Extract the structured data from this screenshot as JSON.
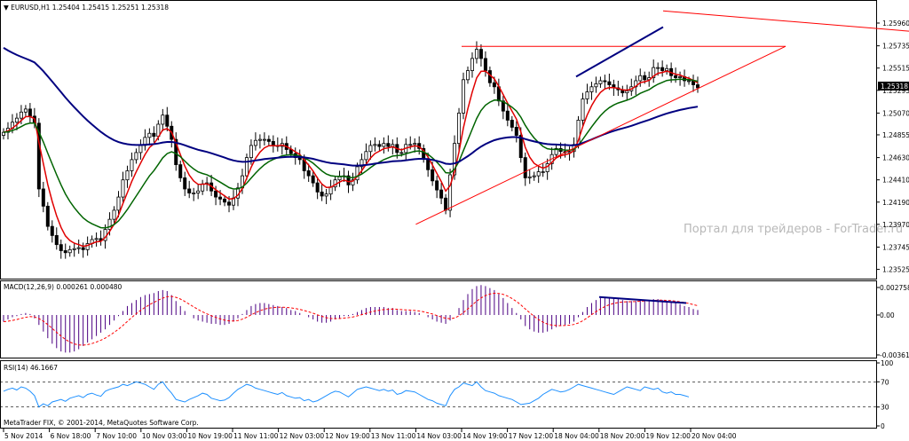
{
  "chart_data": {
    "type": "candlestick",
    "price_panel": {
      "title": "▼ EURUSD,H1  1.25404 1.25415 1.25251 1.25318",
      "price_ticks": [
        "1.25960",
        "1.25735",
        "1.25515",
        "1.25295",
        "1.25070",
        "1.24855",
        "1.24630",
        "1.24410",
        "1.24190",
        "1.23970",
        "1.23745",
        "1.23525"
      ],
      "current_price": "1.25318",
      "watermark": "Портал для трейдеров - ForTrader.ru",
      "ylim": [
        1.2346,
        1.2603
      ],
      "closes": [
        1.2488,
        1.2492,
        1.2498,
        1.2502,
        1.2508,
        1.2511,
        1.2504,
        1.2497,
        1.2432,
        1.2415,
        1.2395,
        1.2386,
        1.2377,
        1.2371,
        1.2369,
        1.2372,
        1.2373,
        1.2374,
        1.2372,
        1.2378,
        1.2382,
        1.2383,
        1.2381,
        1.2392,
        1.2402,
        1.2411,
        1.2424,
        1.2441,
        1.245,
        1.2461,
        1.2468,
        1.2475,
        1.2483,
        1.2487,
        1.2484,
        1.2496,
        1.2505,
        1.2494,
        1.2481,
        1.2456,
        1.2443,
        1.2432,
        1.2428,
        1.2428,
        1.243,
        1.2437,
        1.2438,
        1.243,
        1.2424,
        1.2422,
        1.2419,
        1.2416,
        1.2423,
        1.2433,
        1.2445,
        1.2463,
        1.2475,
        1.248,
        1.2481,
        1.2481,
        1.2479,
        1.2475,
        1.2474,
        1.2477,
        1.2471,
        1.2467,
        1.2463,
        1.2461,
        1.245,
        1.2445,
        1.2438,
        1.2429,
        1.2425,
        1.2427,
        1.2434,
        1.2441,
        1.2444,
        1.2445,
        1.2436,
        1.2441,
        1.2454,
        1.2461,
        1.2469,
        1.2475,
        1.2476,
        1.2474,
        1.2477,
        1.2474,
        1.2476,
        1.2468,
        1.2468,
        1.2476,
        1.2476,
        1.2477,
        1.2472,
        1.2462,
        1.2451,
        1.244,
        1.2431,
        1.2423,
        1.2411,
        1.2446,
        1.2477,
        1.2507,
        1.254,
        1.2549,
        1.2561,
        1.257,
        1.2561,
        1.2549,
        1.2537,
        1.2533,
        1.2519,
        1.2509,
        1.25,
        1.2493,
        1.2485,
        1.2463,
        1.2443,
        1.2444,
        1.2445,
        1.2449,
        1.2449,
        1.2457,
        1.2466,
        1.2472,
        1.2469,
        1.2468,
        1.2469,
        1.2476,
        1.25,
        1.2521,
        1.2528,
        1.2533,
        1.2536,
        1.2539,
        1.2538,
        1.2535,
        1.2532,
        1.253,
        1.2527,
        1.2529,
        1.2533,
        1.2539,
        1.2544,
        1.254,
        1.2542,
        1.2552,
        1.2552,
        1.2549,
        1.2551,
        1.2544,
        1.2542,
        1.2543,
        1.2539,
        1.2539,
        1.2535,
        1.2532
      ]
    },
    "macd_panel": {
      "title": "MACD(12,26,9) 0.000261 0.000480",
      "ticks": [
        "0.002758",
        "0.00",
        "-0.003615"
      ],
      "values": [
        -0.0006,
        -0.0004,
        -0.0002,
        -0.0001,
        0.0001,
        0.0002,
        0.0001,
        -0.0003,
        -0.0009,
        -0.0015,
        -0.0021,
        -0.0026,
        -0.003,
        -0.0033,
        -0.0034,
        -0.0034,
        -0.0033,
        -0.0031,
        -0.0028,
        -0.0025,
        -0.0022,
        -0.0019,
        -0.0016,
        -0.0013,
        -0.0009,
        -0.0005,
        -0.0001,
        0.0004,
        0.0009,
        0.0012,
        0.0015,
        0.0018,
        0.002,
        0.0021,
        0.0022,
        0.0024,
        0.0025,
        0.0024,
        0.002,
        0.0014,
        0.0009,
        0.0004,
        0.0,
        -0.0003,
        -0.0005,
        -0.0006,
        -0.0007,
        -0.0008,
        -0.0008,
        -0.0009,
        -0.0009,
        -0.0008,
        -0.0006,
        -0.0003,
        0.0001,
        0.0005,
        0.0009,
        0.0011,
        0.0012,
        0.0012,
        0.0011,
        0.001,
        0.0009,
        0.0008,
        0.0007,
        0.0005,
        0.0004,
        0.0002,
        0.0,
        -0.0002,
        -0.0004,
        -0.0006,
        -0.0007,
        -0.0007,
        -0.0006,
        -0.0004,
        -0.0003,
        -0.0001,
        -0.0001,
        0.0001,
        0.0003,
        0.0005,
        0.0007,
        0.0008,
        0.0008,
        0.0008,
        0.0008,
        0.0007,
        0.0007,
        0.0005,
        0.0004,
        0.0004,
        0.0004,
        0.0003,
        0.0002,
        0.0,
        -0.0002,
        -0.0004,
        -0.0006,
        -0.0007,
        -0.0008,
        -0.0005,
        0.0,
        0.0007,
        0.0015,
        0.0021,
        0.0026,
        0.0029,
        0.003,
        0.0029,
        0.0027,
        0.0025,
        0.0021,
        0.0017,
        0.0012,
        0.0007,
        0.0002,
        -0.0004,
        -0.001,
        -0.0013,
        -0.0015,
        -0.0016,
        -0.0016,
        -0.0015,
        -0.0013,
        -0.0011,
        -0.001,
        -0.0009,
        -0.0008,
        -0.0006,
        -0.0002,
        0.0003,
        0.0008,
        0.0012,
        0.0015,
        0.0017,
        0.0018,
        0.0018,
        0.0017,
        0.0016,
        0.0015,
        0.0014,
        0.0014,
        0.0014,
        0.0015,
        0.0015,
        0.0015,
        0.0016,
        0.0016,
        0.0015,
        0.0014,
        0.0013,
        0.0012,
        0.0011,
        0.0009,
        0.0008,
        0.0006,
        0.0005
      ]
    },
    "rsi_panel": {
      "title": "RSI(14) 46.1667",
      "ticks": [
        "100",
        "70",
        "30",
        "0"
      ],
      "ylim": [
        0,
        100
      ],
      "values": [
        55,
        58,
        60,
        57,
        62,
        60,
        55,
        48,
        30,
        35,
        32,
        38,
        40,
        42,
        39,
        44,
        46,
        48,
        45,
        50,
        52,
        49,
        47,
        55,
        58,
        60,
        62,
        66,
        64,
        67,
        70,
        68,
        66,
        62,
        58,
        66,
        70,
        60,
        52,
        42,
        40,
        38,
        42,
        45,
        48,
        52,
        50,
        44,
        42,
        40,
        41,
        45,
        52,
        58,
        62,
        66,
        64,
        60,
        58,
        56,
        54,
        52,
        50,
        53,
        48,
        46,
        44,
        45,
        40,
        42,
        38,
        40,
        44,
        48,
        52,
        55,
        54,
        50,
        46,
        52,
        58,
        60,
        62,
        60,
        58,
        56,
        58,
        55,
        57,
        50,
        52,
        56,
        55,
        54,
        50,
        46,
        42,
        40,
        36,
        34,
        32,
        48,
        58,
        62,
        68,
        66,
        64,
        70,
        62,
        56,
        54,
        52,
        48,
        46,
        44,
        42,
        38,
        34,
        35,
        36,
        40,
        44,
        50,
        54,
        58,
        56,
        54,
        55,
        58,
        62,
        66,
        64,
        62,
        60,
        58,
        56,
        54,
        52,
        50,
        54,
        58,
        62,
        60,
        58,
        56,
        62,
        60,
        58,
        60,
        54,
        52,
        54,
        50,
        50,
        48,
        46
      ]
    },
    "time_ticks": [
      "5 Nov 2014",
      "6 Nov 18:00",
      "7 Nov 10:00",
      "10 Nov 03:00",
      "10 Nov 19:00",
      "11 Nov 11:00",
      "12 Nov 03:00",
      "12 Nov 19:00",
      "13 Nov 11:00",
      "14 Nov 03:00",
      "14 Nov 19:00",
      "17 Nov 12:00",
      "18 Nov 04:00",
      "18 Nov 20:00",
      "19 Nov 12:00",
      "20 Nov 04:00"
    ],
    "copyright": "MetaTrader FIX, © 2001-2014, MetaQuotes Software Corp.",
    "colors": {
      "up": "#000000",
      "down": "#000000",
      "ma_fast": "#e00000",
      "ma_mid": "#006400",
      "ma_slow": "#000080",
      "trend_lines": "#ff0000",
      "divergence": "#000080",
      "macd_hist": "#4b0082",
      "macd_signal": "#ff0000",
      "rsi_line": "#1e90ff",
      "grid": "#000000"
    },
    "grid": false,
    "drawn_objects": [
      {
        "kind": "trendline",
        "color": "red",
        "from": [
          "14 Nov 19:00",
          1.2573
        ],
        "to": [
          "20 Nov 12:00",
          1.2573
        ]
      },
      {
        "kind": "trendline",
        "color": "red",
        "from": [
          "14 Nov 03:00",
          1.2397
        ],
        "to": [
          "20 Nov 12:00",
          1.2573
        ]
      },
      {
        "kind": "trendline",
        "color": "red",
        "from": [
          "19 Nov 20:00",
          1.2608
        ],
        "to": [
          "off-chart",
          1.2588
        ]
      },
      {
        "kind": "trendline",
        "color": "navy",
        "from": [
          "18 Nov 08:00",
          1.2543
        ],
        "to": [
          "19 Nov 20:00",
          1.2592
        ]
      },
      {
        "kind": "trendline",
        "color": "navy",
        "panel": "macd",
        "from": [
          "18 Nov 20:00",
          0.0018
        ],
        "to": [
          "20 Nov 04:00",
          0.0012
        ]
      }
    ]
  }
}
